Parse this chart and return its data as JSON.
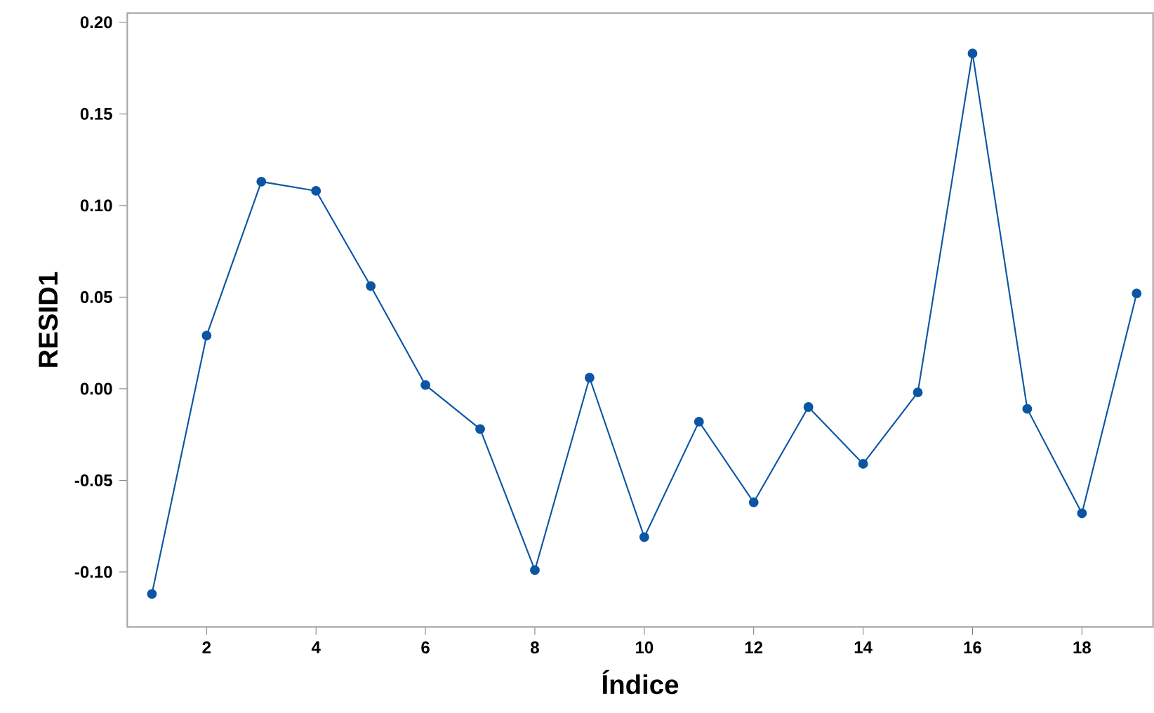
{
  "chart_data": {
    "type": "line",
    "xlabel": "Índice",
    "ylabel": "RESID1",
    "x": [
      1,
      2,
      3,
      4,
      5,
      6,
      7,
      8,
      9,
      10,
      11,
      12,
      13,
      14,
      15,
      16,
      17,
      18,
      19
    ],
    "series": [
      {
        "color": "#0b56a4",
        "values": [
          -0.112,
          0.029,
          0.113,
          0.108,
          0.056,
          0.002,
          -0.022,
          -0.099,
          0.006,
          -0.081,
          -0.018,
          -0.062,
          -0.01,
          -0.041,
          -0.002,
          0.183,
          -0.011,
          -0.068,
          0.052
        ]
      }
    ],
    "xlim": [
      0.55,
      19.3
    ],
    "ylim": [
      -0.13,
      0.205
    ],
    "xticks": [
      2,
      4,
      6,
      8,
      10,
      12,
      14,
      16,
      18
    ],
    "yticks": [
      {
        "value": -0.1,
        "label": "-0.10"
      },
      {
        "value": -0.05,
        "label": "-0.05"
      },
      {
        "value": 0,
        "label": "0.00"
      },
      {
        "value": 0.05,
        "label": "0.05"
      },
      {
        "value": 0.1,
        "label": "0.10"
      },
      {
        "value": 0.15,
        "label": "0.15"
      },
      {
        "value": 0.2,
        "label": "0.20"
      }
    ],
    "marker": "circle",
    "line_style": "solid"
  }
}
